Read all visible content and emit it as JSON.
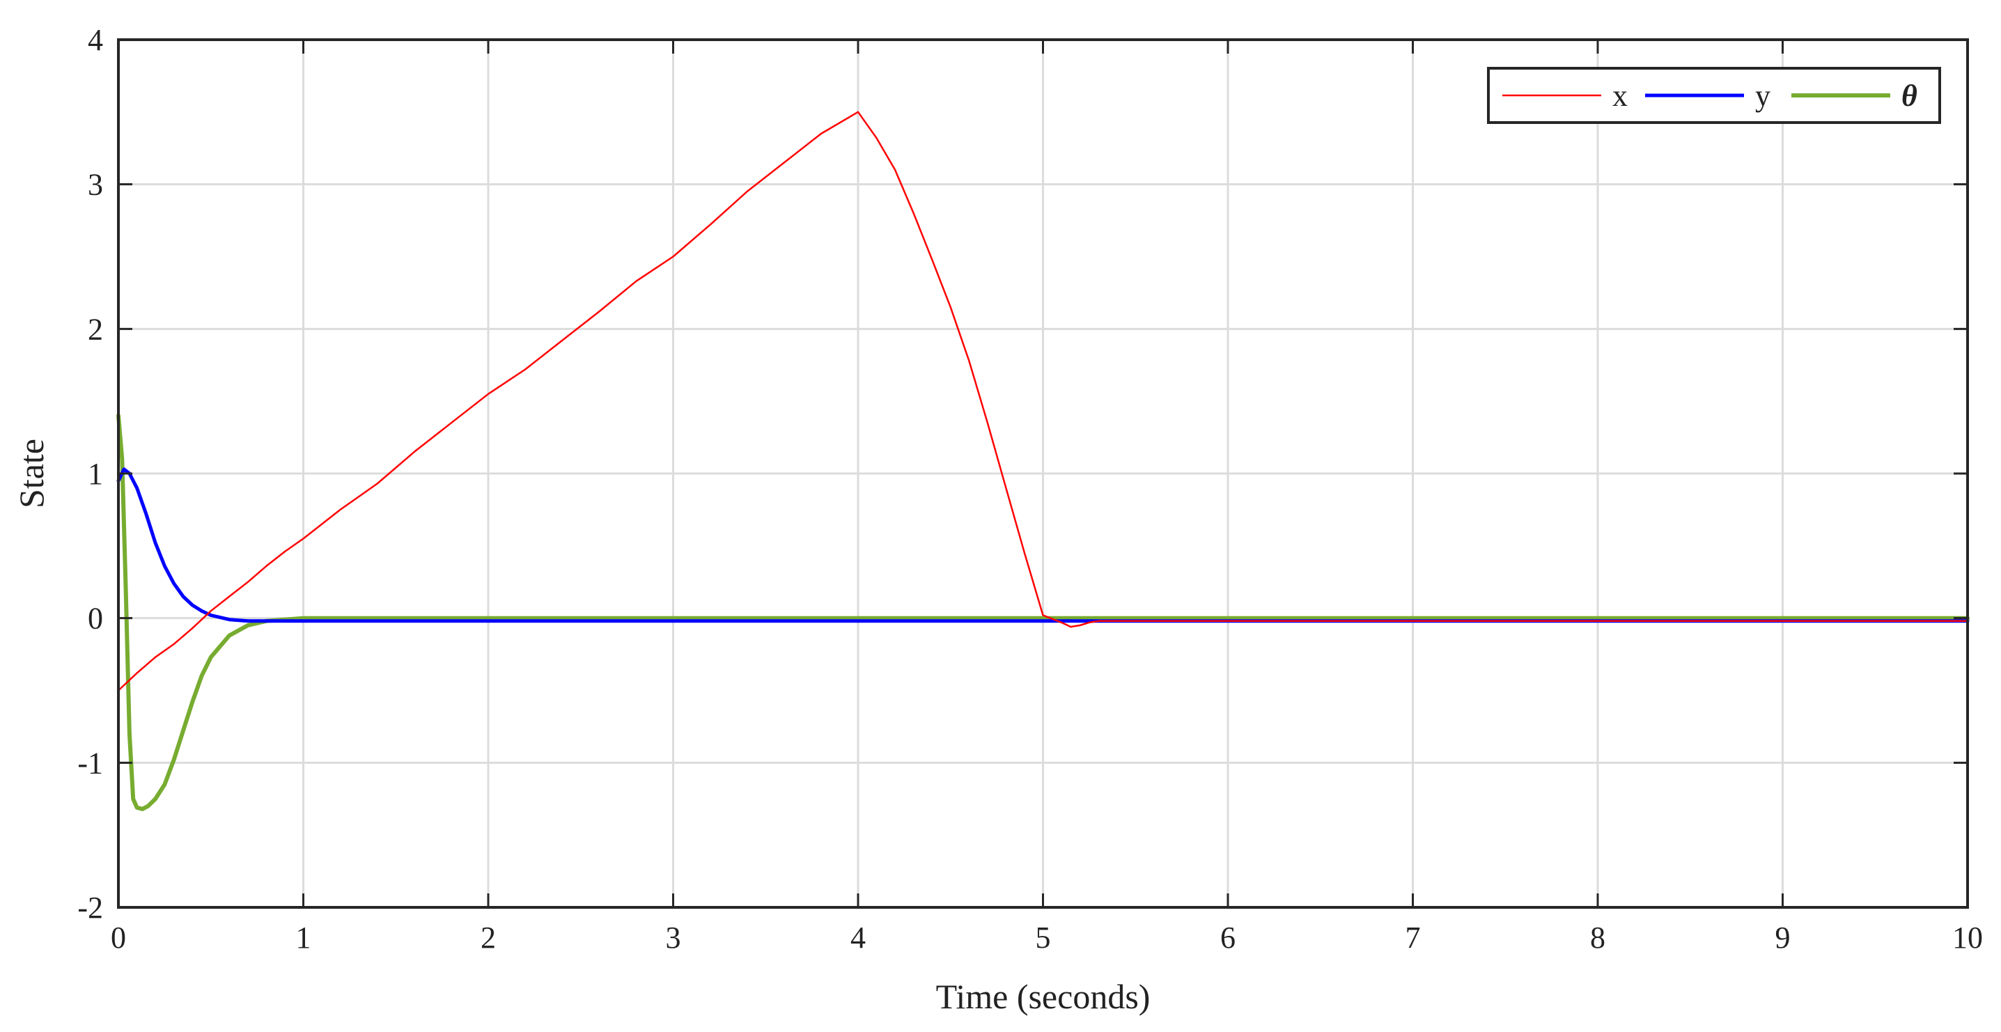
{
  "chart_data": {
    "type": "line",
    "xlabel": "Time (seconds)",
    "ylabel": "State",
    "xlim": [
      0,
      10
    ],
    "ylim": [
      -2,
      4
    ],
    "xticks": [
      0,
      1,
      2,
      3,
      4,
      5,
      6,
      7,
      8,
      9,
      10
    ],
    "yticks": [
      -2,
      -1,
      0,
      1,
      2,
      3,
      4
    ],
    "grid": true,
    "legend_position": "top-right",
    "legend_orientation": "horizontal",
    "series": [
      {
        "name": "x",
        "color": "#ff0000",
        "style": "thin",
        "x": [
          0,
          0.1,
          0.2,
          0.3,
          0.4,
          0.5,
          0.6,
          0.7,
          0.8,
          0.9,
          1.0,
          1.2,
          1.4,
          1.6,
          1.8,
          2.0,
          2.2,
          2.4,
          2.6,
          2.8,
          3.0,
          3.2,
          3.4,
          3.6,
          3.8,
          4.0,
          4.1,
          4.2,
          4.3,
          4.4,
          4.5,
          4.6,
          4.7,
          4.8,
          4.9,
          5.0,
          5.1,
          5.15,
          5.2,
          5.25,
          5.3,
          5.5,
          6,
          7,
          8,
          9,
          10
        ],
        "y": [
          -0.5,
          -0.38,
          -0.27,
          -0.18,
          -0.07,
          0.05,
          0.15,
          0.25,
          0.36,
          0.46,
          0.55,
          0.75,
          0.93,
          1.15,
          1.35,
          1.55,
          1.72,
          1.92,
          2.12,
          2.33,
          2.5,
          2.72,
          2.95,
          3.15,
          3.35,
          3.5,
          3.32,
          3.1,
          2.8,
          2.48,
          2.15,
          1.78,
          1.35,
          0.9,
          0.45,
          0.02,
          -0.03,
          -0.06,
          -0.05,
          -0.03,
          -0.02,
          -0.02,
          -0.02,
          -0.02,
          -0.02,
          -0.02,
          -0.02
        ]
      },
      {
        "name": "y",
        "color": "#0000ff",
        "style": "medium",
        "x": [
          0,
          0.03,
          0.06,
          0.1,
          0.15,
          0.2,
          0.25,
          0.3,
          0.35,
          0.4,
          0.45,
          0.5,
          0.6,
          0.7,
          0.8,
          1.0,
          2.0,
          3.0,
          4.0,
          5.0,
          6.0,
          7.0,
          8.0,
          9.0,
          10.0
        ],
        "y": [
          0.95,
          1.03,
          1.0,
          0.9,
          0.72,
          0.52,
          0.36,
          0.24,
          0.15,
          0.09,
          0.05,
          0.02,
          -0.01,
          -0.02,
          -0.02,
          -0.02,
          -0.02,
          -0.02,
          -0.02,
          -0.02,
          -0.02,
          -0.02,
          -0.02,
          -0.02,
          -0.02
        ]
      },
      {
        "name": "θ",
        "color": "#77ac30",
        "style": "thick",
        "x": [
          0,
          0.02,
          0.04,
          0.06,
          0.08,
          0.1,
          0.13,
          0.16,
          0.2,
          0.25,
          0.3,
          0.35,
          0.4,
          0.45,
          0.5,
          0.6,
          0.7,
          0.8,
          0.9,
          1.0,
          1.5,
          2,
          3,
          4,
          5,
          6,
          7,
          8,
          9,
          10
        ],
        "y": [
          1.4,
          1.1,
          0.2,
          -0.8,
          -1.25,
          -1.31,
          -1.32,
          -1.3,
          -1.25,
          -1.15,
          -0.98,
          -0.78,
          -0.58,
          -0.4,
          -0.27,
          -0.12,
          -0.05,
          -0.02,
          -0.01,
          0.0,
          0.0,
          0.0,
          0.0,
          0.0,
          0.0,
          0.0,
          0.0,
          0.0,
          0.0,
          0.0
        ]
      }
    ]
  }
}
